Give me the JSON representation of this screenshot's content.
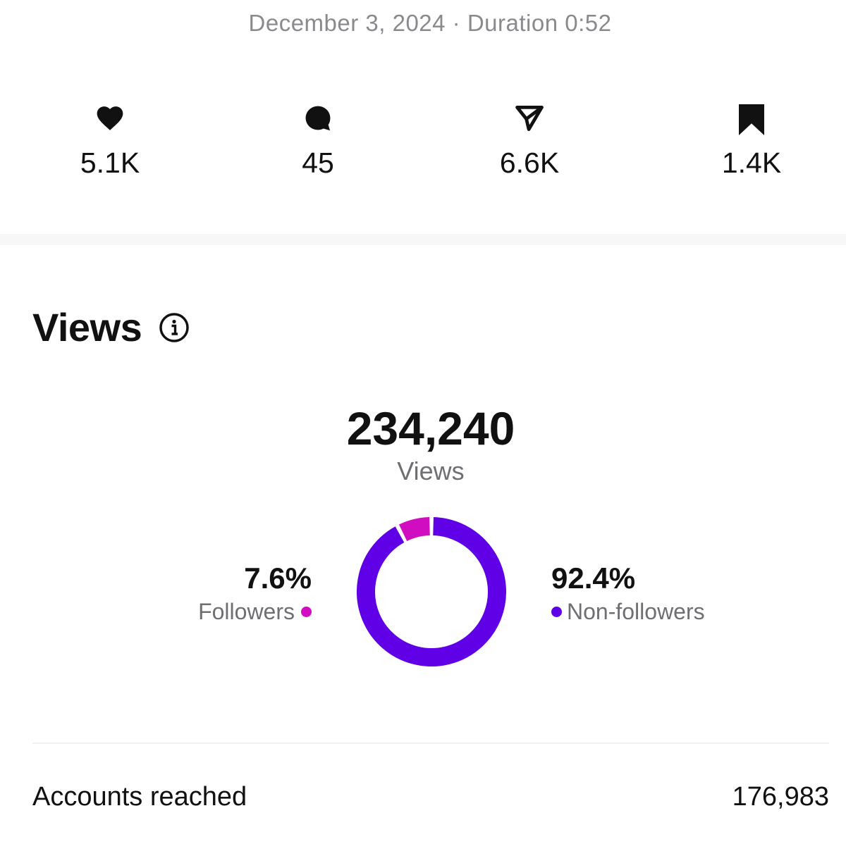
{
  "header": {
    "subtitle": "December 3, 2024 · Duration 0:52"
  },
  "stats": [
    {
      "icon": "heart-icon",
      "value": "5.1K"
    },
    {
      "icon": "comment-icon",
      "value": "45"
    },
    {
      "icon": "share-icon",
      "value": "6.6K"
    },
    {
      "icon": "bookmark-icon",
      "value": "1.4K"
    }
  ],
  "views_section": {
    "title": "Views",
    "info_icon": "info-icon",
    "total_value": "234,240",
    "total_label": "Views",
    "followers": {
      "percent_label": "7.6%",
      "label": "Followers",
      "percent": 7.6,
      "color": "#d10dc2"
    },
    "non_followers": {
      "percent_label": "92.4%",
      "label": "Non-followers",
      "percent": 92.4,
      "color": "#6000e6"
    }
  },
  "metrics": {
    "accounts_reached_label": "Accounts reached",
    "accounts_reached_value": "176,983"
  },
  "colors": {
    "followers": "#d10dc2",
    "non_followers": "#6000e6",
    "text_primary": "#111111",
    "text_secondary": "#6e6e73"
  }
}
